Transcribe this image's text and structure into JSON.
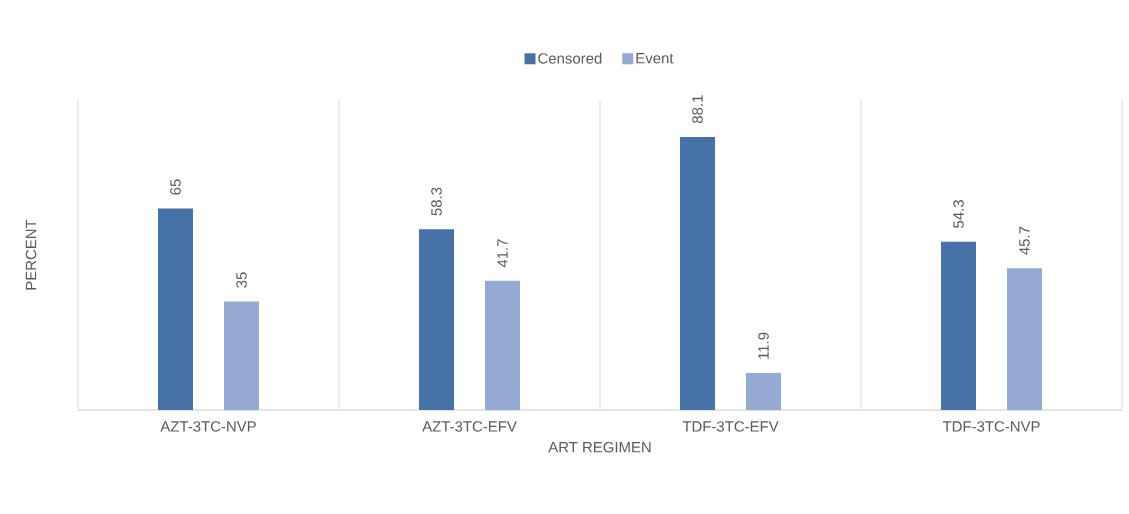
{
  "chart_data": {
    "type": "bar",
    "xlabel": "ART REGIMEN",
    "ylabel": "PERCENT",
    "categories": [
      "AZT-3TC-NVP",
      "AZT-3TC-EFV",
      "TDF-3TC-EFV",
      "TDF-3TC-NVP"
    ],
    "series": [
      {
        "name": "Censored",
        "color": "#4672a8",
        "values": [
          65,
          58.3,
          88.1,
          54.3
        ]
      },
      {
        "name": "Event",
        "color": "#95aad2",
        "values": [
          35,
          41.7,
          11.9,
          45.7
        ]
      }
    ],
    "ylim": [
      0,
      100
    ],
    "data_labels": true,
    "grid": "x",
    "legend": "top"
  }
}
